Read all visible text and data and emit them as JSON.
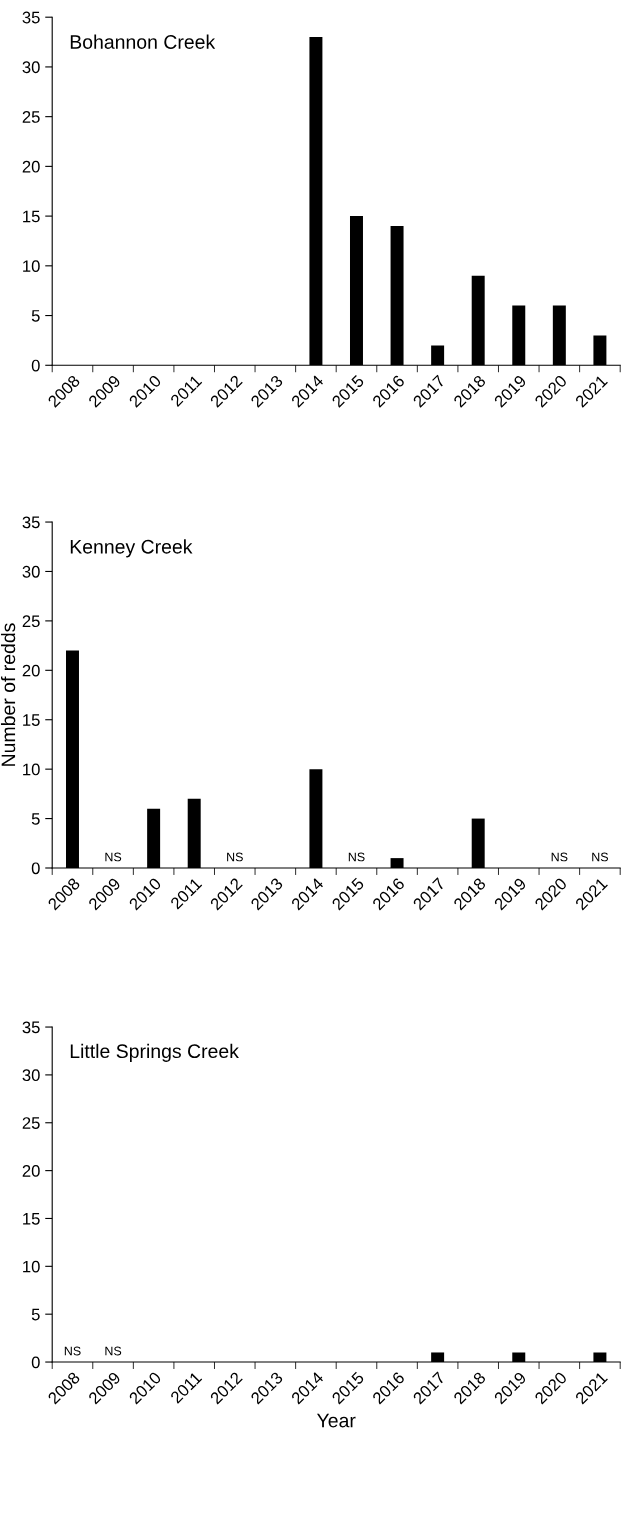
{
  "chart_data": [
    {
      "type": "bar",
      "title": "Bohannon Creek",
      "categories": [
        "2008",
        "2009",
        "2010",
        "2011",
        "2012",
        "2013",
        "2014",
        "2015",
        "2016",
        "2017",
        "2018",
        "2019",
        "2020",
        "2021"
      ],
      "series": [
        {
          "color": "#000000",
          "values": [
            0,
            0,
            0,
            0,
            0,
            0,
            33,
            15,
            14,
            2,
            9,
            6,
            6,
            3
          ]
        }
      ],
      "ylim": [
        0,
        35
      ],
      "yticks": [
        0,
        5,
        10,
        15,
        20,
        25,
        30,
        35
      ],
      "grid": false
    },
    {
      "type": "bar",
      "title": "Kenney Creek",
      "ylabel": "Number of redds",
      "categories": [
        "2008",
        "2009",
        "2010",
        "2011",
        "2012",
        "2013",
        "2014",
        "2015",
        "2016",
        "2017",
        "2018",
        "2019",
        "2020",
        "2021"
      ],
      "series": [
        {
          "color": "#000000",
          "values": [
            22,
            null,
            6,
            7,
            null,
            0,
            10,
            null,
            1,
            0,
            5,
            0,
            null,
            null
          ]
        }
      ],
      "value_labels": [
        null,
        "NS",
        null,
        null,
        "NS",
        null,
        null,
        "NS",
        null,
        null,
        null,
        null,
        "NS",
        "NS"
      ],
      "ylim": [
        0,
        35
      ],
      "yticks": [
        0,
        5,
        10,
        15,
        20,
        25,
        30,
        35
      ],
      "grid": false
    },
    {
      "type": "bar",
      "title": "Little Springs Creek",
      "xlabel": "Year",
      "categories": [
        "2008",
        "2009",
        "2010",
        "2011",
        "2012",
        "2013",
        "2014",
        "2015",
        "2016",
        "2017",
        "2018",
        "2019",
        "2020",
        "2021"
      ],
      "series": [
        {
          "color": "#000000",
          "values": [
            null,
            null,
            0,
            0,
            0,
            0,
            0,
            0,
            0,
            1,
            0,
            1,
            0,
            1
          ]
        }
      ],
      "value_labels": [
        "NS",
        "NS",
        null,
        null,
        null,
        null,
        null,
        null,
        null,
        null,
        null,
        null,
        null,
        null
      ],
      "ylim": [
        0,
        35
      ],
      "yticks": [
        0,
        5,
        10,
        15,
        20,
        25,
        30,
        35
      ],
      "grid": false
    }
  ]
}
